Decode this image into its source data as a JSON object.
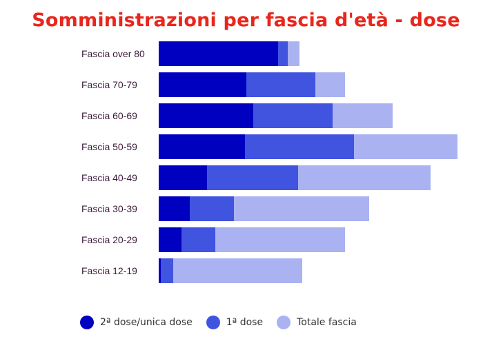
{
  "chart_data": {
    "type": "bar",
    "orientation": "horizontal",
    "stacked": true,
    "title": "Somministrazioni per fascia d'età - dose",
    "categories": [
      "Fascia over 80",
      "Fascia 70-79",
      "Fascia 60-69",
      "Fascia 50-59",
      "Fascia 40-49",
      "Fascia 30-39",
      "Fascia 20-29",
      "Fascia 12-19"
    ],
    "series": [
      {
        "name": "2ª dose/unica dose",
        "color": "#0000c0",
        "values": [
          173,
          127,
          137,
          125,
          70,
          45,
          33,
          3
        ]
      },
      {
        "name": "1ª dose",
        "color": "#4054e0",
        "values": [
          14,
          100,
          115,
          158,
          132,
          64,
          49,
          18
        ]
      },
      {
        "name": "Totale fascia",
        "color": "#aab2f2",
        "values": [
          17,
          43,
          87,
          150,
          192,
          196,
          188,
          187
        ]
      }
    ],
    "xlim": [
      0,
      433
    ],
    "grid": false,
    "legend_position": "bottom"
  }
}
